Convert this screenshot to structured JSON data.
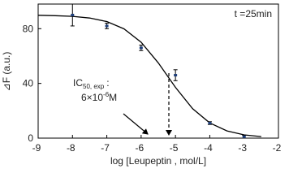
{
  "chart_data": {
    "type": "scatter",
    "x_label": "log [Leupeptin , mol/L]",
    "y_label": "⊿F (a.u.)",
    "x": [
      -8,
      -7,
      -6,
      -5,
      -4,
      -3
    ],
    "values": [
      90,
      82,
      66,
      46,
      11,
      1
    ],
    "errors": [
      8,
      2,
      2,
      4,
      1,
      1
    ],
    "color": "#1f3f7a",
    "fit": {
      "x": [
        -9,
        -8.5,
        -8,
        -7.5,
        -7,
        -6.5,
        -6,
        -5.5,
        -5,
        -4.5,
        -4,
        -3.5,
        -3,
        -2.5
      ],
      "values": [
        89.8,
        89.5,
        89.0,
        87.8,
        85.2,
        79.9,
        70.1,
        55.0,
        37.1,
        21.5,
        11.1,
        5.3,
        2.4,
        1.1
      ],
      "color": "#000000"
    },
    "xlim": [
      -9,
      -2
    ],
    "xticks": [
      -9,
      -8,
      -7,
      -6,
      -5,
      -4,
      -3,
      -2
    ],
    "ylim": [
      0,
      98
    ],
    "yticks": [
      0,
      40,
      80
    ],
    "annotations": {
      "time": "t =25min",
      "ic50": {
        "main": "IC",
        "sub": "50, exp",
        "colon": ":"
      },
      "conc": {
        "main": "6×10",
        "sup": "-6",
        "unit": "M"
      }
    }
  }
}
